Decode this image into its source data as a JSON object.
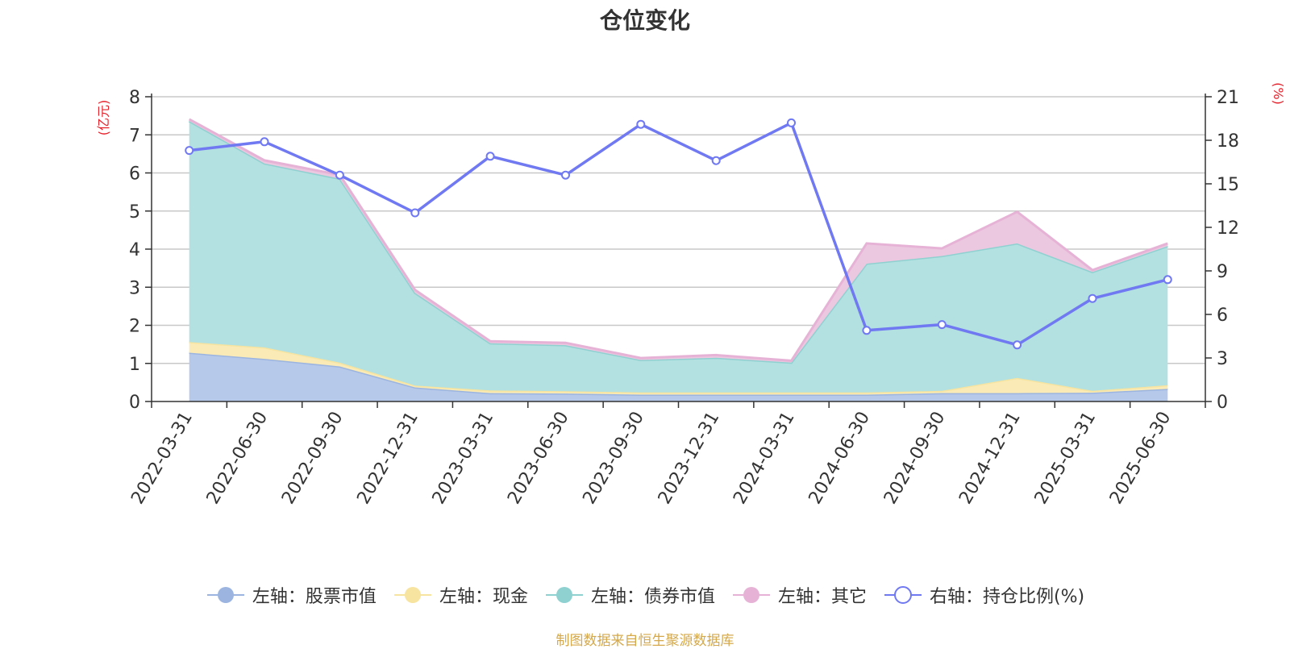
{
  "title": "仓位变化",
  "source": "制图数据来自恒生聚源数据库",
  "chart_data": {
    "type": "area",
    "title": "仓位变化",
    "categories": [
      "2022-03-31",
      "2022-06-30",
      "2022-09-30",
      "2022-12-31",
      "2023-03-31",
      "2023-06-30",
      "2023-09-30",
      "2023-12-31",
      "2024-03-31",
      "2024-06-30",
      "2024-09-30",
      "2024-12-31",
      "2025-03-31",
      "2025-06-30"
    ],
    "left_axis": {
      "unit": "(亿元)",
      "ylim": [
        0,
        8
      ],
      "ticks": [
        0,
        1,
        2,
        3,
        4,
        5,
        6,
        7,
        8
      ]
    },
    "right_axis": {
      "unit": "(%)",
      "ylim": [
        0,
        21
      ],
      "ticks": [
        0,
        3,
        6,
        9,
        12,
        15,
        18,
        21
      ]
    },
    "grid": true,
    "legend_position": "bottom",
    "series": [
      {
        "name": "左轴：股票市值",
        "axis": "left",
        "kind": "stacked-area",
        "color": "#9bb5e0",
        "fill": "#b7c9ea",
        "values": [
          1.28,
          1.12,
          0.92,
          0.37,
          0.22,
          0.21,
          0.18,
          0.18,
          0.18,
          0.18,
          0.22,
          0.22,
          0.23,
          0.33
        ]
      },
      {
        "name": "左轴：现金",
        "axis": "left",
        "kind": "stacked-area",
        "color": "#f7e4a0",
        "fill": "#f9eab6",
        "values": [
          0.28,
          0.3,
          0.1,
          0.05,
          0.07,
          0.06,
          0.06,
          0.06,
          0.06,
          0.06,
          0.06,
          0.4,
          0.05,
          0.1
        ]
      },
      {
        "name": "左轴：债券市值",
        "axis": "left",
        "kind": "stacked-area",
        "color": "#8fd1d1",
        "fill": "#b3e0e0",
        "values": [
          5.8,
          4.83,
          4.83,
          2.43,
          1.24,
          1.21,
          0.85,
          0.91,
          0.78,
          3.38,
          3.54,
          3.53,
          3.12,
          3.65
        ]
      },
      {
        "name": "左轴：其它",
        "axis": "left",
        "kind": "stacked-area",
        "color": "#e6b3d6",
        "fill": "#ecc8e0",
        "values": [
          0.05,
          0.08,
          0.1,
          0.08,
          0.05,
          0.06,
          0.05,
          0.07,
          0.05,
          0.53,
          0.2,
          0.83,
          0.05,
          0.07
        ]
      },
      {
        "name": "右轴：持仓比例(%)",
        "axis": "right",
        "kind": "line",
        "color": "#7079f2",
        "values": [
          17.3,
          17.9,
          15.6,
          13.0,
          16.9,
          15.6,
          19.1,
          16.6,
          19.2,
          4.9,
          5.3,
          3.9,
          7.1,
          8.4
        ]
      }
    ]
  }
}
